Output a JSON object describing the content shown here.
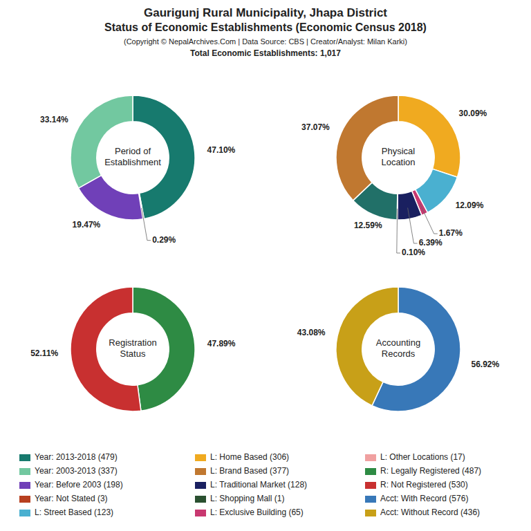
{
  "title": "Gaurigunj Rural Municipality, Jhapa District\nStatus of Economic Establishments (Economic Census 2018)",
  "subtitle": "(Copyright © NepalArchives.Com | Data Source: CBS | Creator/Analyst: Milan Karki)",
  "annotations": [
    "Total Economic Establishments: 1,017"
  ],
  "series": [
    {
      "name": "Year: 2013-2018 (479)",
      "color": "#177a6e"
    },
    {
      "name": "Year: 2003-2013 (337)",
      "color": "#72c8a0"
    },
    {
      "name": "Year: Before 2003 (198)",
      "color": "#7040b8"
    },
    {
      "name": "Year: Not Stated (3)",
      "color": "#b84020"
    },
    {
      "name": "L: Street Based (123)",
      "color": "#4ab0d0"
    },
    {
      "name": "L: Home Based (306)",
      "color": "#f0aa20"
    },
    {
      "name": "L: Brand Based (377)",
      "color": "#c07830"
    },
    {
      "name": "L: Traditional Market (128)",
      "color": "#1a2060"
    },
    {
      "name": "L: Shopping Mall (1)",
      "color": "#2a5030"
    },
    {
      "name": "L: Exclusive Building (65)",
      "color": "#c83870"
    },
    {
      "name": "L: Other Locations (17)",
      "color": "#f0a0a0"
    },
    {
      "name": "R: Legally Registered (487)",
      "color": "#2e8b44"
    },
    {
      "name": "R: Not Registered (530)",
      "color": "#c83030"
    },
    {
      "name": "Acct: With Record (576)",
      "color": "#3878b8"
    },
    {
      "name": "Acct: Without Record (436)",
      "color": "#c8a018"
    }
  ],
  "chart_data": [
    {
      "type": "pie",
      "title": "Period of\nEstablishment",
      "values": [
        47.1,
        0.29,
        19.47,
        33.14
      ],
      "value_labels": [
        "47.10%",
        "0.29%",
        "19.47%",
        "33.14%"
      ],
      "colors": [
        "#177a6e",
        "#b84020",
        "#7040b8",
        "#72c8a0"
      ],
      "data_labels": true
    },
    {
      "type": "pie",
      "title": "Physical\nLocation",
      "values": [
        30.09,
        12.09,
        1.67,
        6.39,
        0.1,
        12.59,
        37.07
      ],
      "value_labels": [
        "30.09%",
        "12.09%",
        "1.67%",
        "6.39%",
        "0.10%",
        "12.59%",
        "37.07%"
      ],
      "colors": [
        "#f0aa20",
        "#4ab0d0",
        "#c83870",
        "#1a2060",
        "#2a5030",
        "#217068",
        "#c07830"
      ],
      "data_labels": true
    },
    {
      "type": "pie",
      "title": "Registration\nStatus",
      "values": [
        47.89,
        52.11
      ],
      "value_labels": [
        "47.89%",
        "52.11%"
      ],
      "colors": [
        "#2e8b44",
        "#c83030"
      ],
      "data_labels": true
    },
    {
      "type": "pie",
      "title": "Accounting\nRecords",
      "values": [
        56.92,
        43.08
      ],
      "value_labels": [
        "56.92%",
        "43.08%"
      ],
      "colors": [
        "#3878b8",
        "#c8a018"
      ],
      "data_labels": true
    }
  ]
}
